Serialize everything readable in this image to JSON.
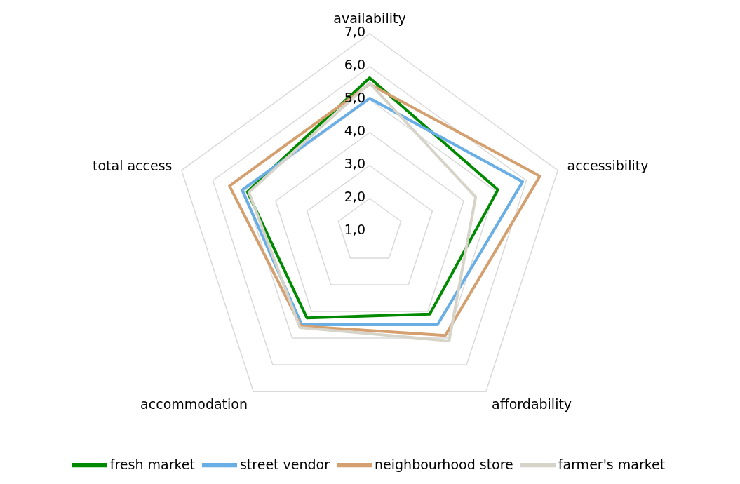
{
  "chart_data": {
    "type": "radar",
    "categories": [
      "availability",
      "accessibility",
      "affordability",
      "accommodation",
      "total access"
    ],
    "series": [
      {
        "name": "fresh market",
        "color": "#008a00",
        "values": [
          5.66,
          5.09,
          4.1,
          4.24,
          4.9
        ]
      },
      {
        "name": "street vendor",
        "color": "#6aaee6",
        "values": [
          5.04,
          5.88,
          4.5,
          4.5,
          5.07
        ]
      },
      {
        "name": "neighbourhood store",
        "color": "#d4a070",
        "values": [
          5.47,
          6.43,
          4.9,
          4.55,
          5.47
        ]
      },
      {
        "name": "farmer's market",
        "color": "#d6d3c8",
        "values": [
          5.5,
          4.38,
          5.1,
          4.6,
          4.85
        ]
      }
    ],
    "ylim": [
      1,
      7
    ],
    "yticks": [
      {
        "value": 1,
        "label": "1,0"
      },
      {
        "value": 2,
        "label": "2,0"
      },
      {
        "value": 3,
        "label": "3,0"
      },
      {
        "value": 4,
        "label": "4,0"
      },
      {
        "value": 5,
        "label": "5,0"
      },
      {
        "value": 6,
        "label": "6,0"
      },
      {
        "value": 7,
        "label": "7,0"
      }
    ],
    "grid": true,
    "legend": "bottom",
    "marker": "none"
  }
}
